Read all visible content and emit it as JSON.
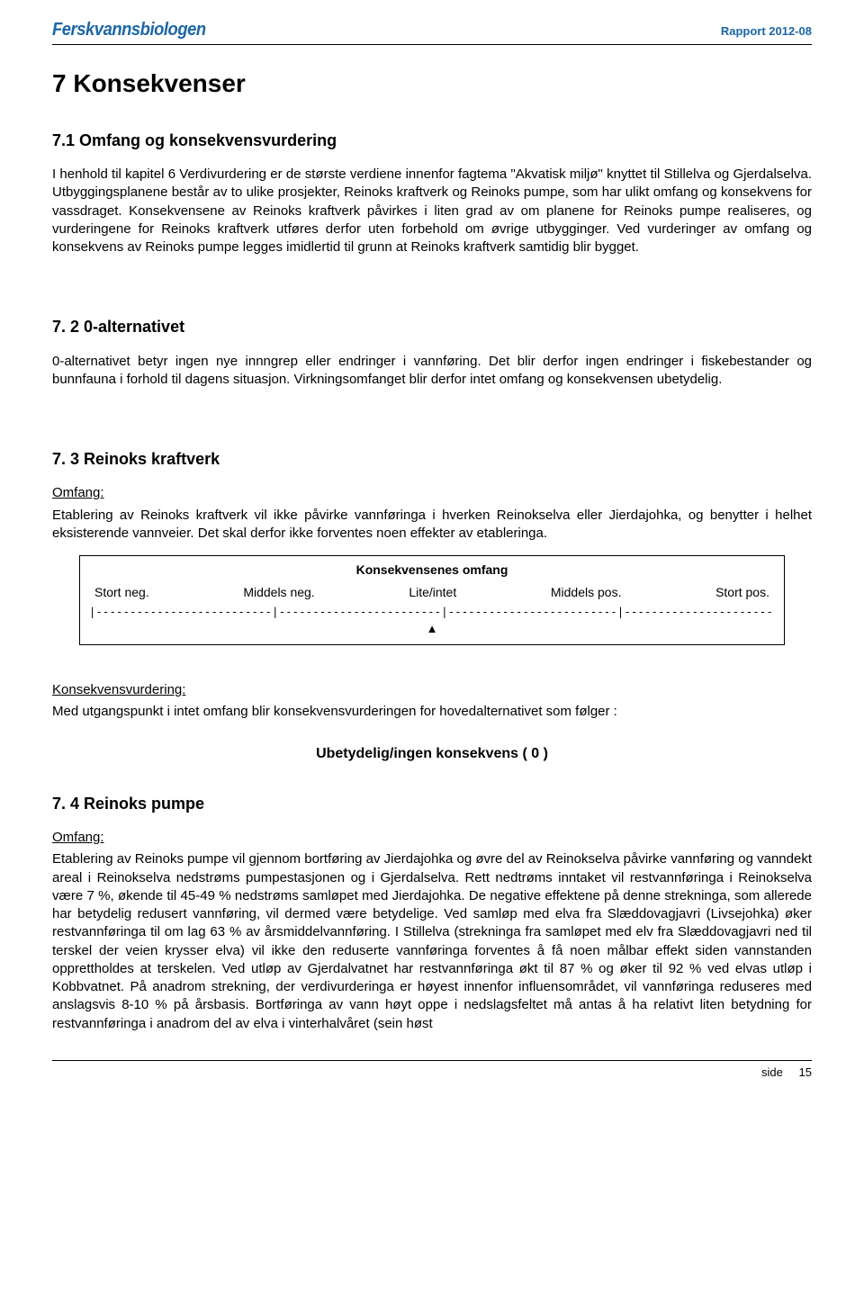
{
  "header": {
    "brand": "Ferskvannsbiologen",
    "report_id": "Rapport 2012-08"
  },
  "h1": "7 Konsekvenser",
  "s71": {
    "title": "7.1 Omfang og konsekvensvurdering",
    "p1": "I henhold til kapitel 6 Verdivurdering er de største verdiene innenfor fagtema \"Akvatisk miljø\" knyttet til Stillelva og Gjerdalselva. Utbyggingsplanene består av to ulike prosjekter, Reinoks kraftverk og Reinoks pumpe, som har ulikt omfang og konsekvens for vassdraget. Konsekvensene av Reinoks kraftverk påvirkes i liten grad av om planene for Reinoks pumpe realiseres, og vurderingene for Reinoks kraftverk utføres derfor uten forbehold om øvrige utbygginger. Ved vurderinger av omfang og konsekvens av Reinoks pumpe legges imidlertid til grunn at Reinoks kraftverk samtidig blir bygget."
  },
  "s72": {
    "title": "7. 2  0-alternativet",
    "p1": "0-alternativet betyr ingen nye innngrep eller endringer i vannføring. Det blir derfor ingen endringer i fiskebestander og bunnfauna i forhold til dagens situasjon. Virkningsomfanget blir derfor intet omfang og konsekvensen ubetydelig."
  },
  "s73": {
    "title": "7. 3  Reinoks kraftverk",
    "omfang_label": "Omfang:",
    "p1": "Etablering av Reinoks kraftverk vil ikke påvirke vannføringa i hverken Reinokselva eller Jierdajohka, og benytter i helhet eksisterende vannveier. Det skal derfor ikke forventes noen effekter av etableringa.",
    "table": {
      "title": "Konsekvensenes omfang",
      "labels": [
        "Stort neg.",
        "Middels neg.",
        "Lite/intet",
        "Middels pos.",
        "Stort pos."
      ],
      "scale_line": "|--------------------------|------------------------|-------------------------|--------------------------|",
      "marker": "▲"
    },
    "kv_label": "Konsekvensvurdering:",
    "kv_text": "Med utgangspunkt i intet omfang blir konsekvensvurderingen  for hovedalternativet som følger :",
    "result": "Ubetydelig/ingen konsekvens ( 0 )"
  },
  "s74": {
    "title": "7. 4  Reinoks pumpe",
    "omfang_label": "Omfang:",
    "p1": "Etablering av Reinoks pumpe vil gjennom bortføring av Jierdajohka og øvre del av Reinokselva påvirke vannføring og vanndekt areal i Reinokselva nedstrøms pumpestasjonen og i Gjerdalselva. Rett nedtrøms inntaket vil restvannføringa i Reinokselva være 7 %, økende til 45-49 % nedstrøms samløpet med Jierdajohka. De negative effektene på denne strekninga, som allerede har betydelig redusert vannføring, vil dermed være betydelige. Ved samløp med elva fra Slæddovagjavri (Livsejohka) øker restvannføringa til om lag 63 % av årsmiddelvannføring. I Stillelva (strekninga fra samløpet med elv fra Slæddovagjavri ned til terskel der veien krysser elva) vil ikke den reduserte vannføringa forventes å få noen målbar effekt siden vannstanden opprettholdes at terskelen. Ved utløp av Gjerdalvatnet har restvannføringa økt til 87 % og øker til 92 % ved elvas utløp i Kobbvatnet. På anadrom strekning, der verdivurderinga er høyest innenfor influensområdet, vil vannføringa reduseres med anslagsvis 8-10 % på årsbasis. Bortføringa av vann høyt oppe i nedslagsfeltet må antas å ha relativt liten betydning for restvannføringa i anadrom del av elva i vinterhalvåret (sein høst"
  },
  "footer": {
    "label": "side",
    "page": "15"
  }
}
